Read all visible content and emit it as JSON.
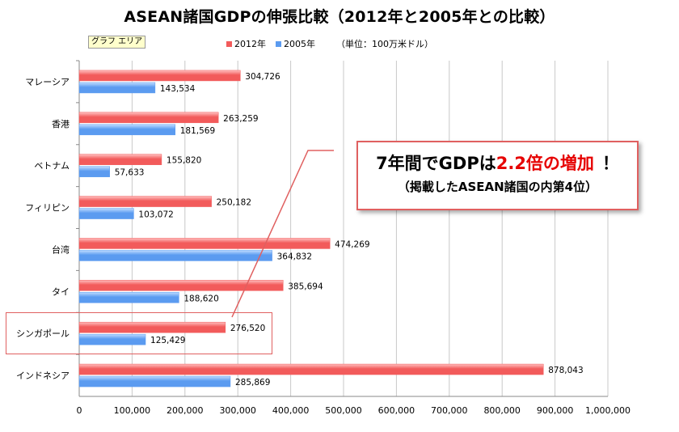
{
  "title": "ASEAN諸国GDPの伸張比較（2012年と2005年との比較）",
  "area_tag": "グラフ エリア",
  "unit_note": "（単位：100万米ドル）",
  "colors": {
    "s2012": "#f25b5b",
    "s2005": "#5b9bf0",
    "grid": "#c8c8c8"
  },
  "callout": {
    "prefix": "7年間でGDPは",
    "highlight": "2.2倍の増加",
    "suffix": "！",
    "line2": "（掲載したASEAN諸国の内第4位）"
  },
  "chart_data": {
    "type": "bar",
    "orientation": "horizontal",
    "title": "ASEAN諸国GDPの伸張比較（2012年と2005年との比較）",
    "categories": [
      "マレーシア",
      "香港",
      "ベトナム",
      "フィリピン",
      "台湾",
      "タイ",
      "シンガポール",
      "インドネシア"
    ],
    "series": [
      {
        "name": "2012年",
        "values": [
          304726,
          263259,
          155820,
          250182,
          474269,
          385694,
          276520,
          878043
        ]
      },
      {
        "name": "2005年",
        "values": [
          143534,
          181569,
          57633,
          103072,
          364832,
          188620,
          125429,
          285869
        ]
      }
    ],
    "xlim": [
      0,
      1000000
    ],
    "xticks": [
      0,
      100000,
      200000,
      300000,
      400000,
      500000,
      600000,
      700000,
      800000,
      900000,
      1000000
    ],
    "xtick_labels": [
      "0",
      "100,000",
      "200,000",
      "300,000",
      "400,000",
      "500,000",
      "600,000",
      "700,000",
      "800,000",
      "900,000",
      "1,000,000"
    ],
    "grid": true,
    "legend": "top",
    "highlight_category": "シンガポール"
  }
}
